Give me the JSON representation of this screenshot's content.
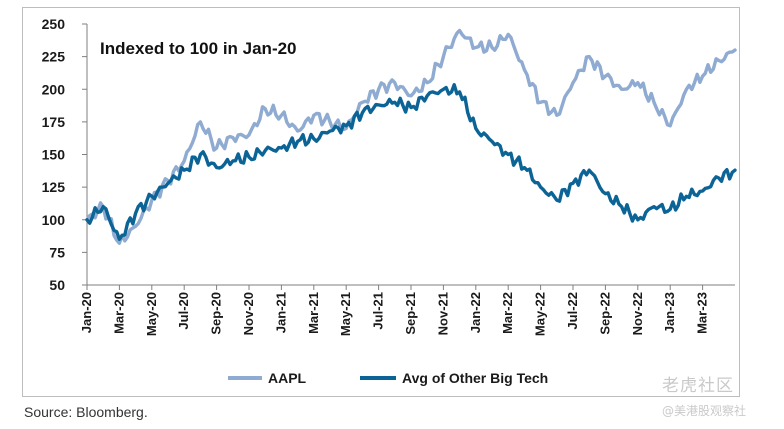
{
  "source": "Source: Bloomberg.",
  "watermark": {
    "line1": "老虎社区",
    "line2": "@美港股观察社"
  },
  "colors": {
    "aapl": "#8fabd1",
    "other": "#0c6496",
    "axis": "#7f7f7f"
  },
  "chart_data": {
    "type": "line",
    "title": "",
    "annotation": "Indexed to 100 in Jan-20",
    "xlabel": "",
    "ylabel": "",
    "ylim": [
      50,
      250
    ],
    "yticks": [
      50,
      75,
      100,
      125,
      150,
      175,
      200,
      225,
      250
    ],
    "xlim": [
      "2020-01",
      "2023-05"
    ],
    "xticks": [
      "Jan-20",
      "Mar-20",
      "May-20",
      "Jul-20",
      "Sep-20",
      "Nov-20",
      "Jan-21",
      "Mar-21",
      "May-21",
      "Jul-21",
      "Sep-21",
      "Nov-21",
      "Jan-22",
      "Mar-22",
      "May-22",
      "Jul-22",
      "Sep-22",
      "Nov-22",
      "Jan-23",
      "Mar-23"
    ],
    "grid": false,
    "legend_position": "bottom-center",
    "x": [
      "2020-01",
      "2020-02",
      "2020-03",
      "2020-04",
      "2020-05",
      "2020-06",
      "2020-07",
      "2020-08",
      "2020-09",
      "2020-10",
      "2020-11",
      "2020-12",
      "2021-01",
      "2021-02",
      "2021-03",
      "2021-04",
      "2021-05",
      "2021-06",
      "2021-07",
      "2021-08",
      "2021-09",
      "2021-10",
      "2021-11",
      "2021-12",
      "2022-01",
      "2022-02",
      "2022-03",
      "2022-04",
      "2022-05",
      "2022-06",
      "2022-07",
      "2022-08",
      "2022-09",
      "2022-10",
      "2022-11",
      "2022-12",
      "2023-01",
      "2023-02",
      "2023-03",
      "2023-04",
      "2023-05"
    ],
    "series": [
      {
        "name": "AAPL",
        "values": [
          100,
          110,
          82,
          95,
          115,
          130,
          145,
          175,
          155,
          163,
          165,
          185,
          180,
          168,
          180,
          175,
          170,
          190,
          200,
          205,
          195,
          205,
          225,
          245,
          232,
          232,
          242,
          215,
          190,
          180,
          205,
          225,
          210,
          200,
          205,
          190,
          172,
          200,
          210,
          222,
          230
        ]
      },
      {
        "name": "Avg of Other Big Tech",
        "values": [
          100,
          110,
          85,
          105,
          118,
          128,
          138,
          150,
          140,
          145,
          148,
          153,
          155,
          160,
          162,
          168,
          172,
          182,
          188,
          190,
          186,
          195,
          200,
          198,
          170,
          160,
          150,
          140,
          125,
          115,
          128,
          138,
          120,
          110,
          100,
          110,
          108,
          118,
          122,
          132,
          138
        ]
      }
    ]
  }
}
